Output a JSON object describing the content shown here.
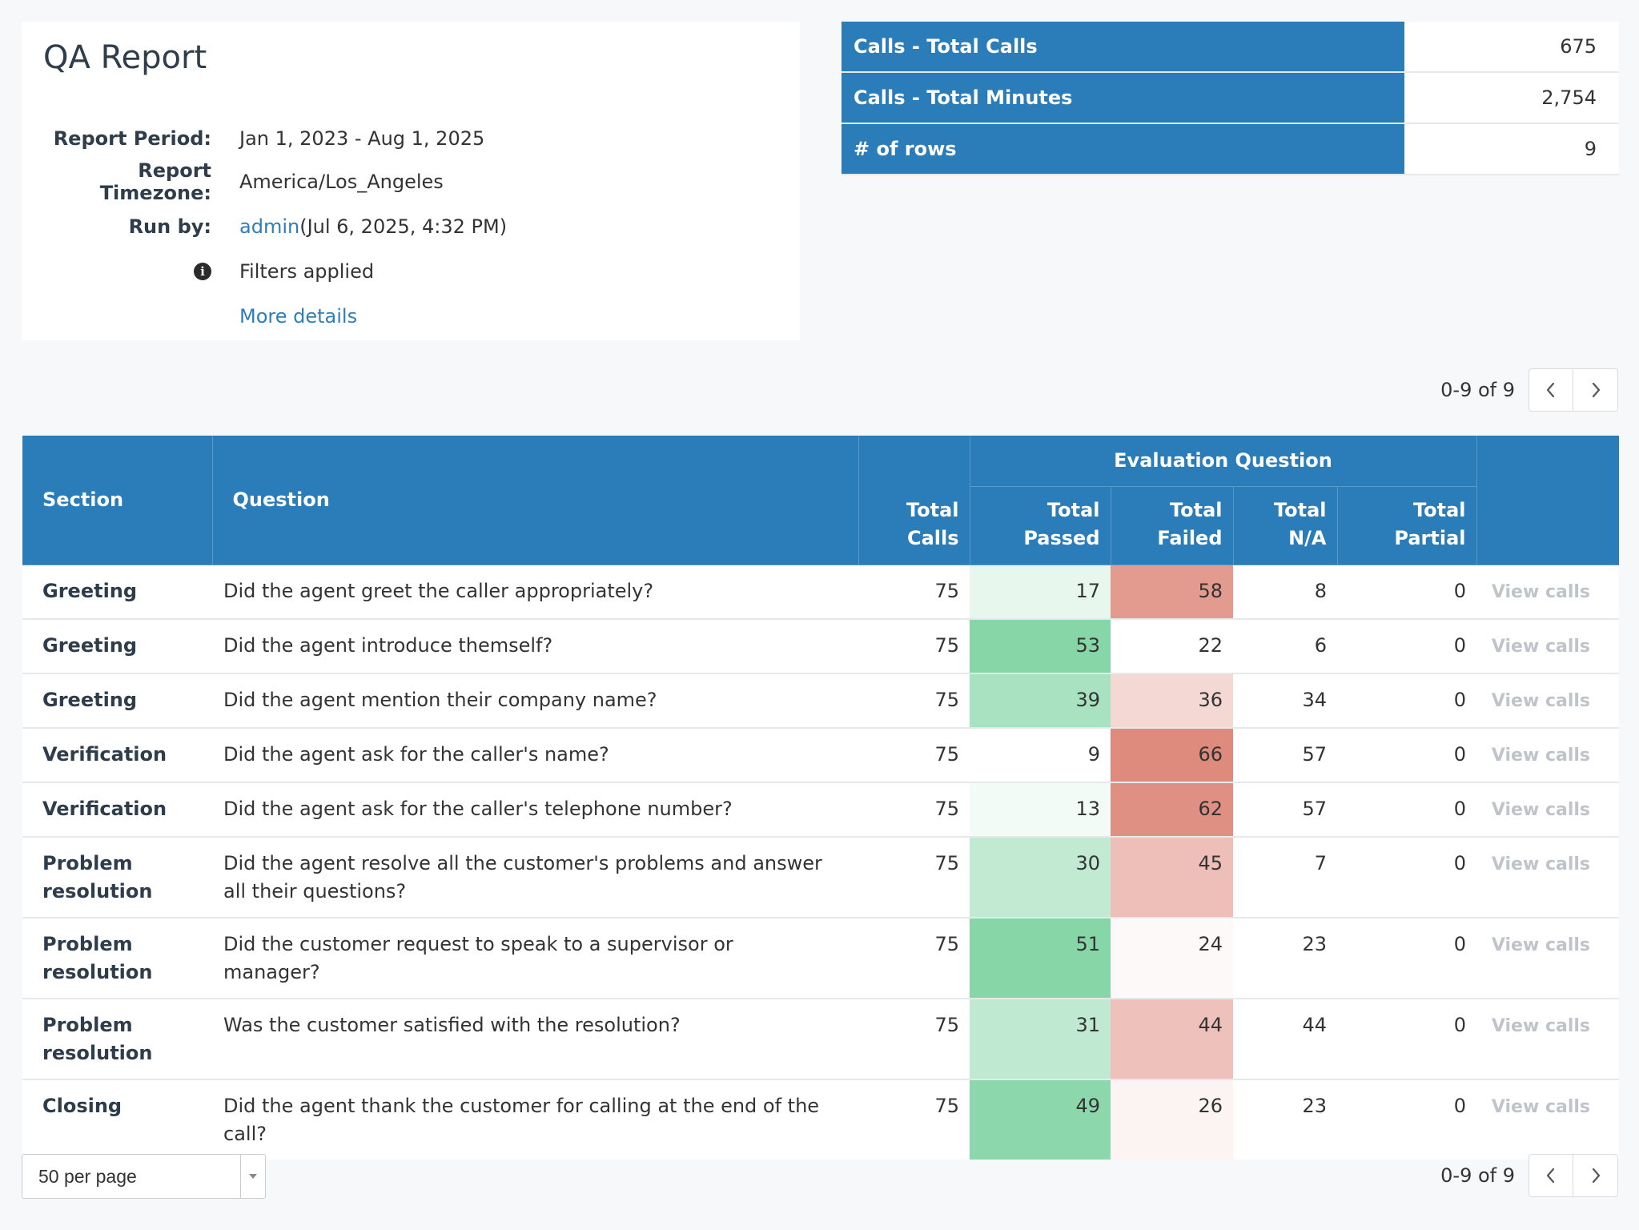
{
  "report": {
    "title": "QA Report",
    "period_label": "Report Period:",
    "period_value": "Jan 1, 2023 - Aug 1, 2025",
    "timezone_label": "Report Timezone:",
    "timezone_value": "America/Los_Angeles",
    "run_by_label": "Run by:",
    "run_by_user": "admin",
    "run_by_time": "(Jul 6, 2025, 4:32 PM)",
    "info_glyph": "i",
    "filters_text": "Filters applied",
    "more_details": "More details"
  },
  "stats": [
    {
      "label": "Calls - Total Calls",
      "value": "675"
    },
    {
      "label": "Calls - Total Minutes",
      "value": "2,754"
    },
    {
      "label": "# of rows",
      "value": "9"
    }
  ],
  "pagination": {
    "range_text": "0-9 of 9",
    "prev_icon": "chevron-left-icon",
    "next_icon": "chevron-right-icon"
  },
  "table": {
    "headers": {
      "section": "Section",
      "question": "Question",
      "total_calls": "Total Calls",
      "group": "Evaluation Question",
      "passed": "Total Passed",
      "failed": "Total Failed",
      "na": "Total N/A",
      "partial": "Total Partial"
    },
    "view_label": "View calls",
    "rows": [
      {
        "section": "Greeting",
        "question": "Did the agent greet the caller appropriately?",
        "total": "75",
        "passed": "17",
        "failed": "58",
        "na": "8",
        "partial": "0"
      },
      {
        "section": "Greeting",
        "question": "Did the agent introduce themself?",
        "total": "75",
        "passed": "53",
        "failed": "22",
        "na": "6",
        "partial": "0"
      },
      {
        "section": "Greeting",
        "question": "Did the agent mention their company name?",
        "total": "75",
        "passed": "39",
        "failed": "36",
        "na": "34",
        "partial": "0"
      },
      {
        "section": "Verification",
        "question": "Did the agent ask for the caller's name?",
        "total": "75",
        "passed": "9",
        "failed": "66",
        "na": "57",
        "partial": "0"
      },
      {
        "section": "Verification",
        "question": "Did the agent ask for the caller's telephone number?",
        "total": "75",
        "passed": "13",
        "failed": "62",
        "na": "57",
        "partial": "0"
      },
      {
        "section": "Problem resolution",
        "question": "Did the agent resolve all the customer's problems and answer all their questions?",
        "total": "75",
        "passed": "30",
        "failed": "45",
        "na": "7",
        "partial": "0"
      },
      {
        "section": "Problem resolution",
        "question": "Did the customer request to speak to a supervisor or manager?",
        "total": "75",
        "passed": "51",
        "failed": "24",
        "na": "23",
        "partial": "0"
      },
      {
        "section": "Problem resolution",
        "question": "Was the customer satisfied with the resolution?",
        "total": "75",
        "passed": "31",
        "failed": "44",
        "na": "44",
        "partial": "0"
      },
      {
        "section": "Closing",
        "question": "Did the agent thank the customer for calling at the end of the call?",
        "total": "75",
        "passed": "49",
        "failed": "26",
        "na": "23",
        "partial": "0"
      }
    ]
  },
  "per_page": {
    "value": "50 per page",
    "caret_icon": "caret-down-icon"
  },
  "colors": {
    "header_blue": "#2a7db9",
    "link_blue": "#2b7fbd",
    "pass_green": "#86d6a8",
    "fail_red": "#de8a7d",
    "muted_link": "#bfc4ca"
  }
}
